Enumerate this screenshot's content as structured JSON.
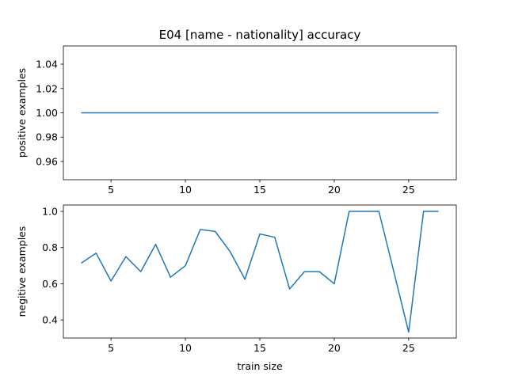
{
  "figure": {
    "title": "E04 [name - nationality] accuracy",
    "line_color": "#1f77b4"
  },
  "chart_data": [
    {
      "type": "line",
      "title": "E04 [name - nationality] accuracy",
      "xlabel": "",
      "ylabel": "positive examples",
      "xlim": [
        1.8,
        28.2
      ],
      "ylim": [
        0.945,
        1.055
      ],
      "xticks": [
        5,
        10,
        15,
        20,
        25
      ],
      "xtick_labels": [
        "5",
        "10",
        "15",
        "20",
        "25"
      ],
      "yticks": [
        0.96,
        0.98,
        1.0,
        1.02,
        1.04
      ],
      "ytick_labels": [
        "0.96",
        "0.98",
        "1.00",
        "1.02",
        "1.04"
      ],
      "grid": false,
      "series": [
        {
          "x": [
            3,
            4,
            5,
            6,
            7,
            8,
            9,
            10,
            11,
            12,
            13,
            14,
            15,
            16,
            17,
            18,
            19,
            20,
            21,
            22,
            23,
            24,
            25,
            26,
            27
          ],
          "values": [
            1,
            1,
            1,
            1,
            1,
            1,
            1,
            1,
            1,
            1,
            1,
            1,
            1,
            1,
            1,
            1,
            1,
            1,
            1,
            1,
            1,
            1,
            1,
            1,
            1
          ]
        }
      ]
    },
    {
      "type": "line",
      "title": "",
      "xlabel": "train size",
      "ylabel": "negitive examples",
      "xlim": [
        1.8,
        28.2
      ],
      "ylim": [
        0.3,
        1.035
      ],
      "xticks": [
        5,
        10,
        15,
        20,
        25
      ],
      "xtick_labels": [
        "5",
        "10",
        "15",
        "20",
        "25"
      ],
      "yticks": [
        0.4,
        0.6,
        0.8,
        1.0
      ],
      "ytick_labels": [
        "0.4",
        "0.6",
        "0.8",
        "1.0"
      ],
      "grid": false,
      "series": [
        {
          "x": [
            3,
            4,
            5,
            6,
            7,
            8,
            9,
            10,
            11,
            12,
            13,
            14,
            15,
            16,
            17,
            18,
            19,
            20,
            21,
            22,
            23,
            24,
            25,
            26,
            27
          ],
          "values": [
            0.714,
            0.769,
            0.615,
            0.75,
            0.667,
            0.818,
            0.636,
            0.7,
            0.9,
            0.889,
            0.778,
            0.625,
            0.875,
            0.857,
            0.571,
            0.667,
            0.667,
            0.6,
            1.0,
            1.0,
            1.0,
            0.667,
            0.333,
            1.0,
            1.0
          ]
        }
      ]
    }
  ]
}
